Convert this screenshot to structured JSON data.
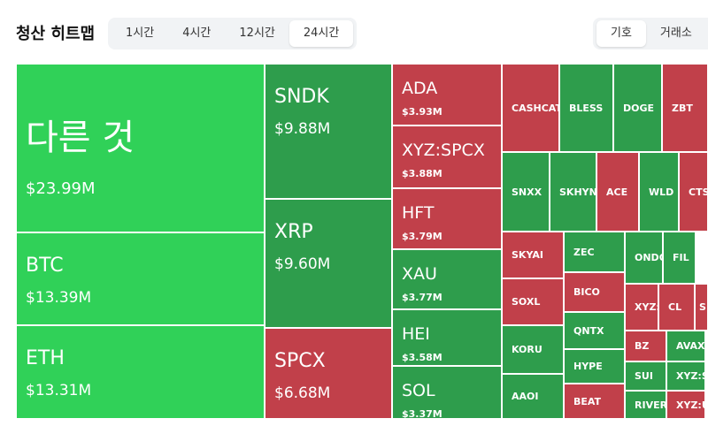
{
  "header": {
    "title": "청산 히트맵",
    "time_tabs": [
      "1시간",
      "4시간",
      "12시간",
      "24시간"
    ],
    "active_time_tab": 3,
    "group_tabs": [
      "기호",
      "거래소"
    ],
    "active_group_tab": 0
  },
  "tiles": [
    {
      "label": "다른 것",
      "value": "$23.99M",
      "color": "#30d158"
    },
    {
      "label": "BTC",
      "value": "$13.39M",
      "color": "#30d158"
    },
    {
      "label": "ETH",
      "value": "$13.31M",
      "color": "#30d158"
    },
    {
      "label": "SNDK",
      "value": "$9.88M",
      "color": "#2e9d4c"
    },
    {
      "label": "XRP",
      "value": "$9.60M",
      "color": "#2e9d4c"
    },
    {
      "label": "SPCX",
      "value": "$6.68M",
      "color": "#c1404a"
    },
    {
      "label": "ADA",
      "value": "$3.93M",
      "color": "#c1404a"
    },
    {
      "label": "XYZ:SPCX",
      "value": "$3.88M",
      "color": "#c1404a"
    },
    {
      "label": "HFT",
      "value": "$3.79M",
      "color": "#c1404a"
    },
    {
      "label": "XAU",
      "value": "$3.77M",
      "color": "#2e9d4c"
    },
    {
      "label": "HEI",
      "value": "$3.58M",
      "color": "#2e9d4c"
    },
    {
      "label": "SOL",
      "value": "$3.37M",
      "color": "#2e9d4c"
    },
    {
      "label": "CASHCAT",
      "color": "#c1404a"
    },
    {
      "label": "BLESS",
      "color": "#2e9d4c"
    },
    {
      "label": "DOGE",
      "color": "#2e9d4c"
    },
    {
      "label": "ZBT",
      "color": "#c1404a"
    },
    {
      "label": "SNXX",
      "color": "#2e9d4c"
    },
    {
      "label": "SKHYNI",
      "color": "#2e9d4c"
    },
    {
      "label": "ACE",
      "color": "#c1404a"
    },
    {
      "label": "WLD",
      "color": "#2e9d4c"
    },
    {
      "label": "CTSI",
      "color": "#c1404a"
    },
    {
      "label": "SKYAI",
      "color": "#c1404a"
    },
    {
      "label": "SOXL",
      "color": "#c1404a"
    },
    {
      "label": "KORU",
      "color": "#2e9d4c"
    },
    {
      "label": "AAOI",
      "color": "#2e9d4c"
    },
    {
      "label": "ZEC",
      "color": "#2e9d4c"
    },
    {
      "label": "BICO",
      "color": "#c1404a"
    },
    {
      "label": "QNTX",
      "color": "#2e9d4c"
    },
    {
      "label": "HYPE",
      "color": "#2e9d4c"
    },
    {
      "label": "BEAT",
      "color": "#c1404a"
    },
    {
      "label": "ONDO",
      "color": "#2e9d4c"
    },
    {
      "label": "FIL",
      "color": "#2e9d4c"
    },
    {
      "label": "XYZ:Z",
      "color": "#c1404a"
    },
    {
      "label": "CL",
      "color": "#c1404a"
    },
    {
      "label": "S",
      "color": "#c1404a"
    },
    {
      "label": "BZ",
      "color": "#c1404a"
    },
    {
      "label": "AVAX",
      "color": "#2e9d4c"
    },
    {
      "label": "SUI",
      "color": "#2e9d4c"
    },
    {
      "label": "XYZ:S",
      "color": "#2e9d4c"
    },
    {
      "label": "RIVER",
      "color": "#2e9d4c"
    },
    {
      "label": "XYZ:U",
      "color": "#c1404a"
    }
  ]
}
